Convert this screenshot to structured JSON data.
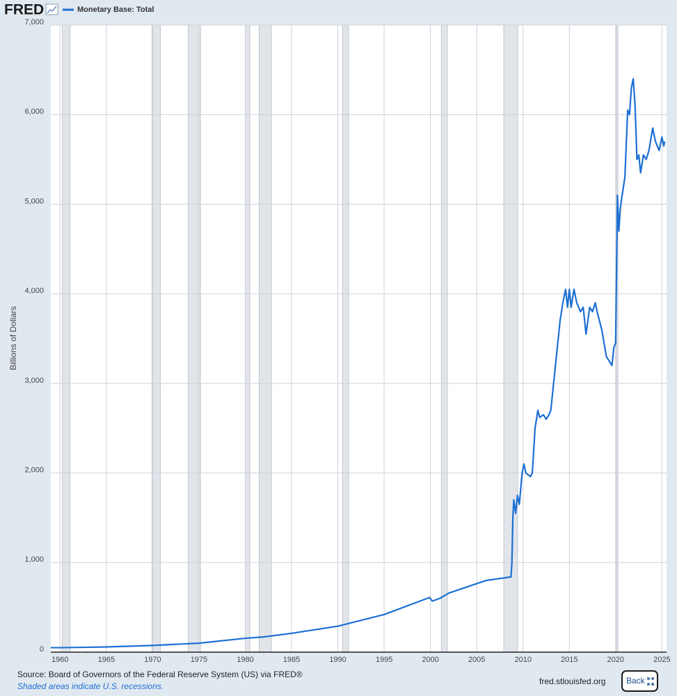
{
  "page": {
    "logo": "FRED",
    "site": "fred.stlouisfed.org",
    "button": "Back"
  },
  "chart_data": {
    "type": "line",
    "y_label": "Billions of Dollars",
    "source": "Source: Board of Governors of the Federal Reserve System (US) via FRED®",
    "note": "Shaded areas indicate U.S. recessions.",
    "xlim": [
      1959,
      2025.5
    ],
    "xticks": [
      1960,
      1965,
      1970,
      1975,
      1980,
      1985,
      1990,
      1995,
      2000,
      2005,
      2010,
      2015,
      2020,
      2025
    ],
    "ylim": [
      0,
      7000
    ],
    "yticks": [
      0,
      {
        "value": 1000,
        "label": "1,000"
      },
      {
        "value": 2000,
        "label": "2,000"
      },
      {
        "value": 3000,
        "label": "3,000"
      },
      {
        "value": 4000,
        "label": "4,000"
      },
      {
        "value": 5000,
        "label": "5,000"
      },
      {
        "value": 6000,
        "label": "6,000"
      },
      {
        "value": 7000,
        "label": "7,000"
      }
    ],
    "grid": true,
    "recessions": [
      [
        1960.25,
        1961.08
      ],
      [
        1969.92,
        1970.83
      ],
      [
        1973.83,
        1975.17
      ],
      [
        1980.0,
        1980.5
      ],
      [
        1981.5,
        1982.83
      ],
      [
        1990.5,
        1991.17
      ],
      [
        2001.17,
        2001.83
      ],
      [
        2007.92,
        2009.42
      ],
      [
        2020.08,
        2020.25
      ]
    ],
    "recession_color": "#e1e5ea",
    "series": [
      {
        "name": "Monetary Base: Total",
        "color": "#1c6fd4",
        "x": [
          1959,
          1960,
          1965,
          1970,
          1975,
          1980,
          1982,
          1985,
          1990,
          1995,
          1999.9,
          2000.2,
          2001,
          2002,
          2004,
          2006,
          2008.7,
          2008.8,
          2008.9,
          2009.0,
          2009.2,
          2009.4,
          2009.6,
          2009.9,
          2010.1,
          2010.3,
          2010.8,
          2011.0,
          2011.3,
          2011.6,
          2011.8,
          2012.2,
          2012.5,
          2012.8,
          2013.0,
          2013.5,
          2014.0,
          2014.3,
          2014.6,
          2014.8,
          2015.0,
          2015.2,
          2015.5,
          2015.8,
          2016.2,
          2016.5,
          2016.8,
          2017.0,
          2017.2,
          2017.5,
          2017.8,
          2018.0,
          2018.5,
          2019.0,
          2019.3,
          2019.6,
          2019.8,
          2020.0,
          2020.2,
          2020.35,
          2020.5,
          2020.7,
          2021.0,
          2021.3,
          2021.5,
          2021.7,
          2021.9,
          2022.1,
          2022.3,
          2022.5,
          2022.7,
          2023.0,
          2023.3,
          2023.6,
          2024.0,
          2024.3,
          2024.7,
          2025.0,
          2025.2,
          2025.3
        ],
        "values": [
          50,
          50,
          58,
          75,
          100,
          155,
          170,
          210,
          290,
          420,
          610,
          570,
          600,
          660,
          730,
          800,
          840,
          1000,
          1500,
          1700,
          1550,
          1750,
          1650,
          2000,
          2100,
          2000,
          1960,
          2000,
          2500,
          2700,
          2620,
          2650,
          2600,
          2650,
          2700,
          3200,
          3700,
          3900,
          4050,
          3850,
          4050,
          3850,
          4050,
          3900,
          3800,
          3850,
          3550,
          3700,
          3850,
          3800,
          3900,
          3800,
          3600,
          3300,
          3250,
          3200,
          3400,
          3450,
          5100,
          4700,
          4950,
          5100,
          5300,
          6050,
          6000,
          6300,
          6400,
          6100,
          5500,
          5550,
          5350,
          5550,
          5500,
          5600,
          5850,
          5700,
          5600,
          5750,
          5650,
          5700
        ]
      }
    ]
  }
}
